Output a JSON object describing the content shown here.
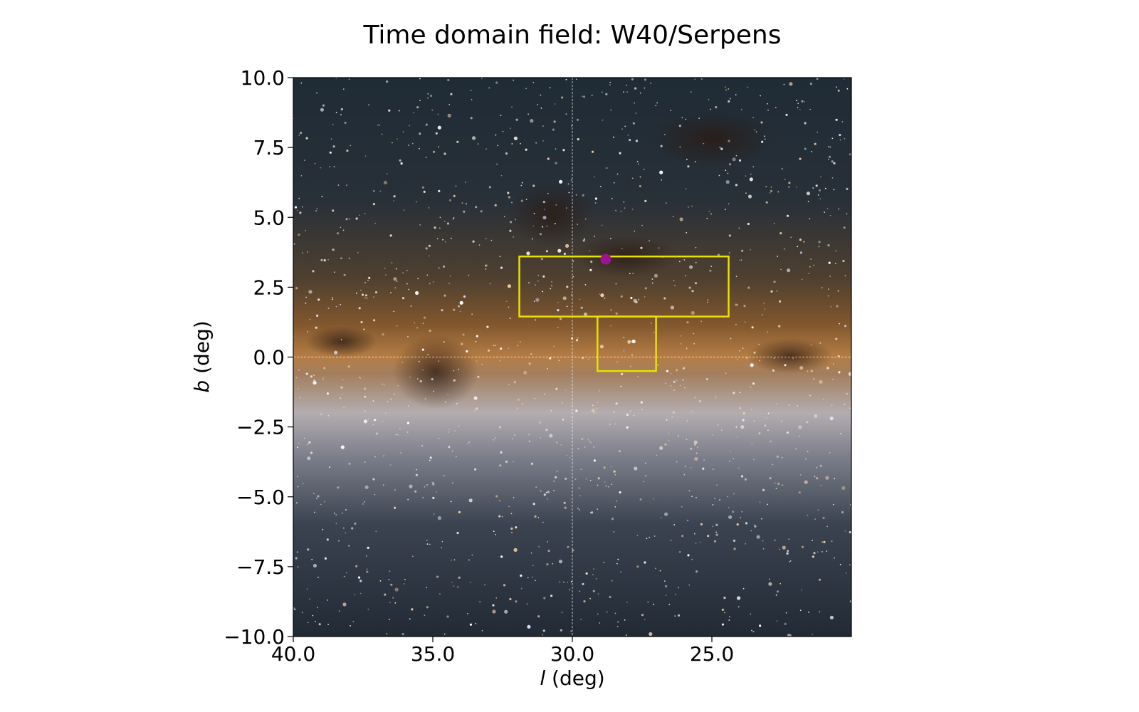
{
  "chart_data": {
    "type": "scatter",
    "title": "Time domain field: W40/Serpens",
    "xlabel_italic": "l",
    "xlabel_rest": " (deg)",
    "ylabel_italic": "b",
    "ylabel_rest": " (deg)",
    "xlim": [
      40.0,
      20.0
    ],
    "ylim": [
      -10.0,
      10.0
    ],
    "xticks": [
      40.0,
      35.0,
      30.0,
      25.0
    ],
    "xtick_labels": [
      "40.0",
      "35.0",
      "30.0",
      "25.0"
    ],
    "yticks": [
      10.0,
      7.5,
      5.0,
      2.5,
      0.0,
      -2.5,
      -5.0,
      -7.5,
      -10.0
    ],
    "ytick_labels": [
      "10.0",
      "7.5",
      "5.0",
      "2.5",
      "0.0",
      "−2.5",
      "−5.0",
      "−7.5",
      "−10.0"
    ],
    "background": "Milky Way optical sky image",
    "grid": false,
    "reference_lines": [
      {
        "axis": "x",
        "value": 30.0,
        "color": "#ffffff",
        "style": "dashed"
      },
      {
        "axis": "y",
        "value": 0.0,
        "color": "#ffffff",
        "style": "dashed"
      }
    ],
    "regions": [
      {
        "l_min": 24.4,
        "l_max": 31.9,
        "b_min": 1.45,
        "b_max": 3.6,
        "color": "#e8e000"
      },
      {
        "l_min": 27.0,
        "l_max": 29.1,
        "b_min": -0.5,
        "b_max": 1.45,
        "color": "#e8e000"
      }
    ],
    "markers": [
      {
        "l": 28.8,
        "b": 3.5,
        "color": "#9b1593",
        "shape": "circle"
      }
    ]
  }
}
